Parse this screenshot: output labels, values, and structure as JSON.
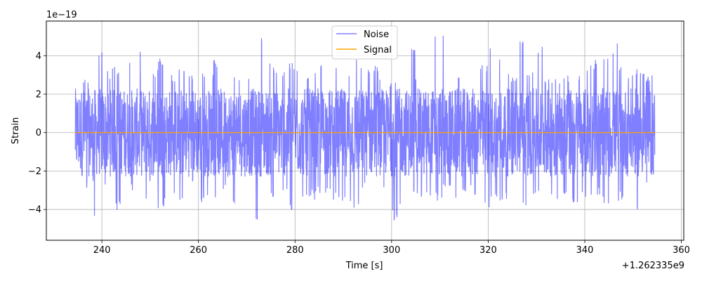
{
  "chart_data": {
    "type": "line",
    "xlabel": "Time [s]",
    "ylabel": "Strain",
    "x_offset_label": "+1.262335e9",
    "y_scale_label": "1e−19",
    "xlim": [
      228.5,
      360.5
    ],
    "ylim": [
      -5.6,
      5.8
    ],
    "x_ticks": [
      240,
      260,
      280,
      300,
      320,
      340,
      360
    ],
    "y_ticks": [
      -4,
      -2,
      0,
      2,
      4
    ],
    "x_tick_labels": [
      "240",
      "260",
      "280",
      "300",
      "320",
      "340",
      "360"
    ],
    "y_tick_labels": [
      "−4",
      "−2",
      "0",
      "2",
      "4"
    ],
    "grid": true,
    "legend_position": "top-center",
    "series": [
      {
        "name": "Noise",
        "color": "#0000ff",
        "opacity": 0.5,
        "x_range": [
          234.5,
          354.5
        ],
        "envelope_upper": [
          2.8,
          2.9,
          4.4,
          3.2,
          3.5,
          4.0,
          3.2,
          4.7,
          3.3,
          4.1,
          3.1,
          3.4,
          3.0,
          3.3,
          3.1,
          3.9,
          3.4,
          3.2,
          2.9,
          3.5,
          5.0,
          3.6,
          3.2,
          3.8,
          3.4,
          3.1,
          3.6,
          3.4,
          3.5,
          3.0,
          3.9,
          3.4,
          3.6,
          3.0,
          2.8,
          3.4,
          4.4,
          3.1,
          3.4,
          5.3,
          5.0,
          3.2,
          2.9,
          3.5,
          3.7,
          4.8,
          4.2,
          3.1,
          5.0,
          3.4,
          4.7,
          2.8,
          3.0,
          3.0,
          3.2,
          3.5,
          3.9,
          4.3,
          4.8,
          3.4,
          3.2,
          3.3,
          3.0
        ],
        "envelope_lower": [
          -3.6,
          -2.9,
          -4.4,
          -3.0,
          -4.2,
          -4.3,
          -3.1,
          -3.7,
          -2.9,
          -4.0,
          -3.2,
          -3.6,
          -2.8,
          -3.9,
          -3.3,
          -3.4,
          -3.1,
          -4.0,
          -3.6,
          -4.7,
          -3.2,
          -3.6,
          -3.1,
          -4.1,
          -3.4,
          -3.5,
          -3.2,
          -3.4,
          -3.6,
          -3.7,
          -4.1,
          -3.0,
          -3.4,
          -3.1,
          -4.7,
          -3.9,
          -3.1,
          -3.7,
          -3.3,
          -3.6,
          -3.0,
          -3.4,
          -3.2,
          -3.6,
          -3.9,
          -3.4,
          -3.6,
          -3.1,
          -3.8,
          -3.6,
          -3.3,
          -3.4,
          -3.7,
          -3.4,
          -4.0,
          -3.6,
          -3.3,
          -3.7,
          -5.0,
          -3.6,
          -4.0,
          -4.0,
          -2.6
        ],
        "typical_amplitude": 2.3
      },
      {
        "name": "Signal",
        "color": "#ffa500",
        "x": [
          234.5,
          354.5
        ],
        "values": [
          0,
          0
        ]
      }
    ]
  }
}
